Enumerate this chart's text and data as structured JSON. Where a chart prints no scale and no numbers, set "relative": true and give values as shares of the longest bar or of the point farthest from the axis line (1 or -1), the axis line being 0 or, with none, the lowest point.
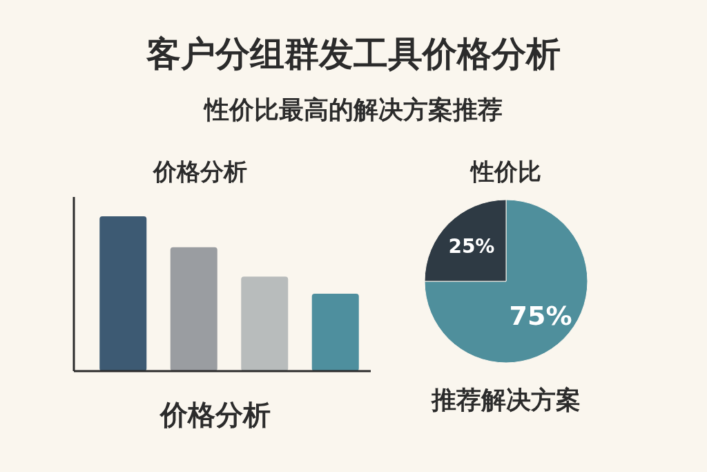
{
  "chart_data": [
    {
      "type": "other",
      "title": "客户分组群发工具价格分析",
      "subtitle": "性价比最高的解决方案推荐"
    },
    {
      "type": "bar",
      "title": "价格分析",
      "xlabel": "价格分析",
      "relative": true,
      "categories": [
        null,
        null,
        null,
        null
      ],
      "values": [
        1,
        0.8,
        0.61,
        0.5
      ],
      "colors": [
        "#3d5a73",
        "#9a9da1",
        "#b8bcbc",
        "#4e8f9e"
      ]
    },
    {
      "type": "pie",
      "title": "性价比",
      "categories": [
        null,
        null
      ],
      "values": [
        75,
        25
      ],
      "colors": [
        "#4f8f9c",
        "#2e3a44"
      ],
      "value_labels": [
        "75%",
        "25%"
      ],
      "annotations": [
        "推荐解决方案"
      ]
    }
  ]
}
